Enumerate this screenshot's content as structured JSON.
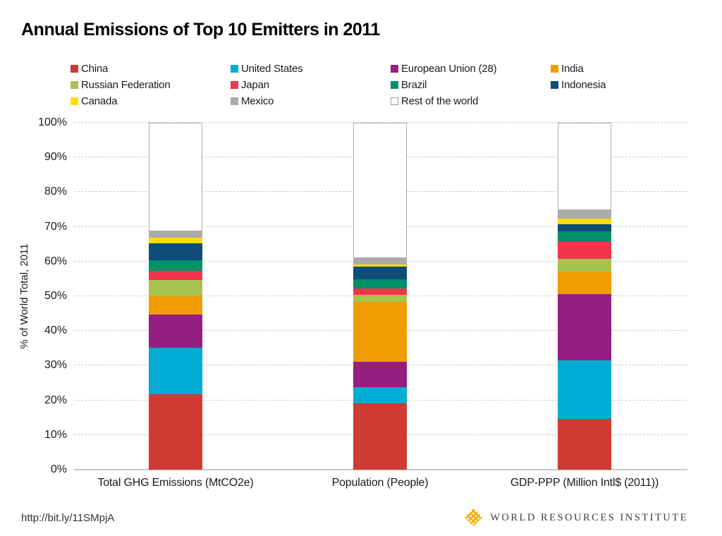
{
  "title": "Annual Emissions of Top 10 Emitters in 2011",
  "footer": {
    "url": "http://bit.ly/11SMpjA",
    "logo_text": "WORLD RESOURCES INSTITUTE",
    "logo_icon": "wri-weave-icon",
    "logo_color": "#F0AB00"
  },
  "chart_data": {
    "type": "bar",
    "stacked": true,
    "title": "Annual Emissions of Top 10 Emitters in 2011",
    "xlabel": "",
    "ylabel": "% of World Total, 2011",
    "ylim": [
      0,
      100
    ],
    "yticks": [
      "0%",
      "10%",
      "20%",
      "30%",
      "40%",
      "50%",
      "60%",
      "70%",
      "80%",
      "90%",
      "100%"
    ],
    "grid": "horizontal-dashed",
    "legend_position": "top",
    "categories": [
      "Total GHG Emissions (MtCO2e)",
      "Population (People)",
      "GDP-PPP (Million Intl$ (2011))"
    ],
    "series": [
      {
        "name": "China",
        "color": "#CF3B32",
        "values": [
          21.7,
          19.2,
          14.6
        ]
      },
      {
        "name": "United States",
        "color": "#00ACD4",
        "values": [
          13.4,
          4.6,
          17.0
        ]
      },
      {
        "name": "European Union (28)",
        "color": "#941F80",
        "values": [
          9.7,
          7.2,
          19.0
        ]
      },
      {
        "name": "India",
        "color": "#F09C00",
        "values": [
          5.3,
          17.4,
          6.5
        ]
      },
      {
        "name": "Russian Federation",
        "color": "#A6C24E",
        "values": [
          4.6,
          2.0,
          3.7
        ]
      },
      {
        "name": "Japan",
        "color": "#F2354D",
        "values": [
          2.6,
          1.9,
          4.8
        ]
      },
      {
        "name": "Brazil",
        "color": "#009068",
        "values": [
          3.1,
          2.6,
          3.1
        ]
      },
      {
        "name": "Indonesia",
        "color": "#0D4D77",
        "values": [
          4.8,
          3.6,
          2.0
        ]
      },
      {
        "name": "Canada",
        "color": "#FFDD00",
        "values": [
          1.6,
          0.6,
          1.7
        ]
      },
      {
        "name": "Mexico",
        "color": "#ABABAB",
        "values": [
          1.9,
          1.9,
          2.5
        ]
      },
      {
        "name": "Rest of the world",
        "color": "#FFFFFF",
        "values": [
          31.3,
          39.0,
          25.1
        ]
      }
    ]
  }
}
